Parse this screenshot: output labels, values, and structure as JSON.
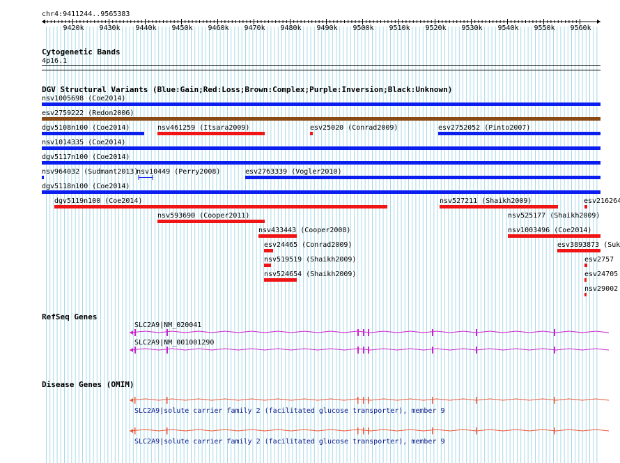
{
  "ruler": {
    "position": "chr4:9411244..9565383",
    "ticks": [
      "9420k",
      "9430k",
      "9440k",
      "9450k",
      "9460k",
      "9470k",
      "9480k",
      "9490k",
      "9500k",
      "9510k",
      "9520k",
      "9530k",
      "9540k",
      "9550k",
      "9560k"
    ]
  },
  "cytobands": {
    "title": "Cytogenetic Bands",
    "band": "4p16.1"
  },
  "dgv": {
    "title": "DGV Structural Variants (Blue:Gain;Red:Loss;Brown:Complex;Purple:Inversion;Black:Unknown)",
    "features": [
      {
        "label": "nsv1005698 (Coe2014)",
        "color": "blue"
      },
      {
        "label": "esv2759222 (Redon2006)",
        "color": "brown"
      },
      {
        "label": "dgv5108n100 (Coe2014)",
        "color": "blue"
      },
      {
        "label": "nsv461259 (Itsara2009)",
        "color": "red"
      },
      {
        "label": "esv25020 (Conrad2009)",
        "color": "red"
      },
      {
        "label": "esv2752052 (Pinto2007)",
        "color": "blue"
      },
      {
        "label": "nsv1014335 (Coe2014)",
        "color": "blue"
      },
      {
        "label": "dgv5117n100 (Coe2014)",
        "color": "blue"
      },
      {
        "label": "nsv964032 (Sudmant2013)",
        "color": "blue"
      },
      {
        "label": "nsv10449 (Perry2008)",
        "color": "blue"
      },
      {
        "label": "esv2763339 (Vogler2010)",
        "color": "blue"
      },
      {
        "label": "dgv5118n100 (Coe2014)",
        "color": "blue"
      },
      {
        "label": "dgv5119n100 (Coe2014)",
        "color": "red"
      },
      {
        "label": "nsv527211 (Shaikh2009)",
        "color": "red"
      },
      {
        "label": "esv216264",
        "color": "red"
      },
      {
        "label": "nsv593690 (Cooper2011)",
        "color": "red"
      },
      {
        "label": "nsv525177 (Shaikh2009)",
        "color": "red"
      },
      {
        "label": "nsv433443 (Cooper2008)",
        "color": "red"
      },
      {
        "label": "nsv1003496 (Coe2014)",
        "color": "red"
      },
      {
        "label": "esv24465 (Conrad2009)",
        "color": "red"
      },
      {
        "label": "esv3893873 (Suk",
        "color": "red"
      },
      {
        "label": "nsv519519 (Shaikh2009)",
        "color": "red"
      },
      {
        "label": "esv2757",
        "color": "red"
      },
      {
        "label": "nsv524654 (Shaikh2009)",
        "color": "red"
      },
      {
        "label": "esv24705",
        "color": "red"
      },
      {
        "label": "nsv29002",
        "color": "red"
      }
    ]
  },
  "refseq": {
    "title": "RefSeq Genes",
    "transcripts": [
      "SLC2A9|NM_020041",
      "SLC2A9|NM_001001290"
    ]
  },
  "omim": {
    "title": "Disease Genes (OMIM)",
    "entries": [
      "SLC2A9|solute carrier family 2 (facilitated glucose transporter), member 9",
      "SLC2A9|solute carrier family 2 (facilitated glucose transporter), member 9"
    ]
  },
  "colors": {
    "gain": "#0a1ef0",
    "loss": "#f01414",
    "complex": "#8b4a14",
    "refseq": "#cc22cc",
    "omim": "#ee5533",
    "grid": "#a8d8e8"
  }
}
